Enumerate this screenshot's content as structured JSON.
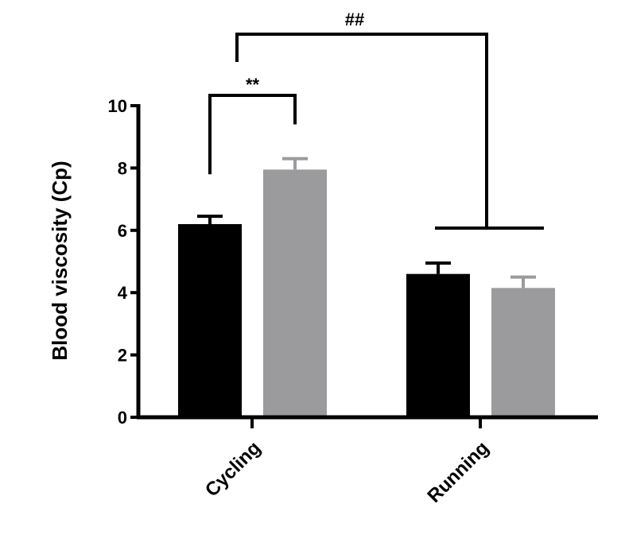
{
  "chart_data": {
    "type": "bar",
    "title": "",
    "xlabel": "",
    "ylabel": "Blood viscosity (Cp)",
    "ylim": [
      0,
      10
    ],
    "yticks": [
      0,
      2,
      4,
      6,
      8,
      10
    ],
    "categories": [
      "Cycling",
      "Running"
    ],
    "series": [
      {
        "values": [
          6.2,
          4.6
        ],
        "errors": [
          0.25,
          0.35
        ],
        "color": "#000000"
      },
      {
        "values": [
          7.95,
          4.15
        ],
        "errors": [
          0.35,
          0.35
        ],
        "color": "#9b9b9d"
      }
    ],
    "legend": "none",
    "grid": false,
    "annotations": [
      {
        "text": "**",
        "type": "bracket",
        "between": "Cycling bars"
      },
      {
        "text": "##",
        "type": "bracket",
        "between": "Cycling and Running"
      }
    ]
  }
}
